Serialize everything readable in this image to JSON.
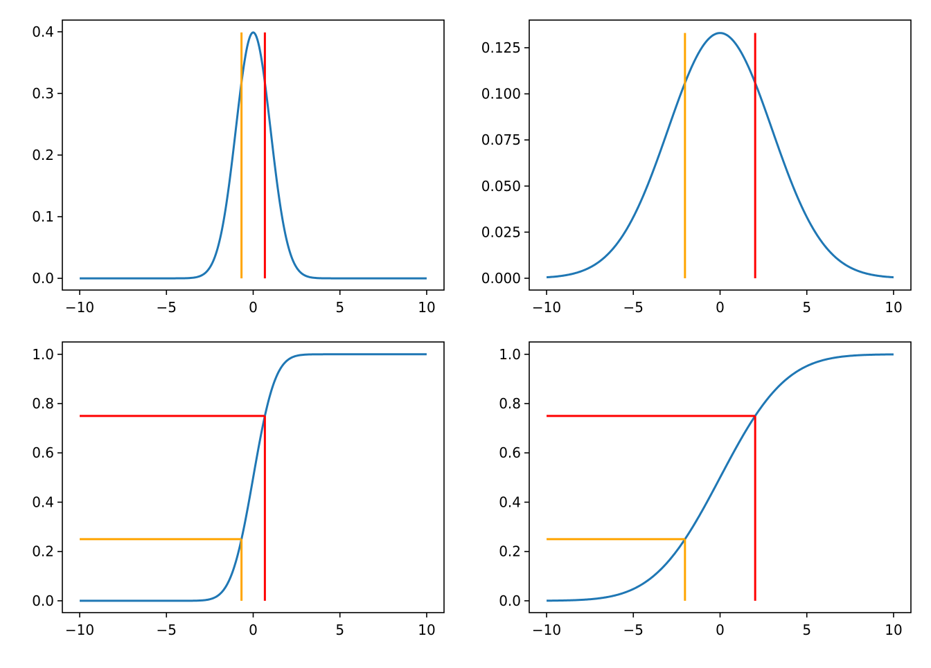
{
  "chart_data": [
    {
      "type": "line",
      "title": "",
      "kind": "pdf",
      "distribution": {
        "name": "normal",
        "mu": 0,
        "sigma": 1
      },
      "x_range": [
        -10,
        10
      ],
      "series": [
        {
          "name": "pdf",
          "color": "#1f77b4"
        }
      ],
      "quartile_lines": [
        {
          "name": "q1",
          "x": -0.674,
          "y_top": 0.3989,
          "color": "#ffa500"
        },
        {
          "name": "q3",
          "x": 0.674,
          "y_top": 0.3989,
          "color": "#ff0000"
        }
      ],
      "xlim": [
        -11,
        11
      ],
      "ylim": [
        -0.019,
        0.419
      ],
      "xticks": [
        {
          "v": -10,
          "label": "−10"
        },
        {
          "v": -5,
          "label": "−5"
        },
        {
          "v": 0,
          "label": "0"
        },
        {
          "v": 5,
          "label": "5"
        },
        {
          "v": 10,
          "label": "10"
        }
      ],
      "yticks": [
        {
          "v": 0,
          "label": "0.0"
        },
        {
          "v": 0.1,
          "label": "0.1"
        },
        {
          "v": 0.2,
          "label": "0.2"
        },
        {
          "v": 0.3,
          "label": "0.3"
        },
        {
          "v": 0.4,
          "label": "0.4"
        }
      ],
      "grid": false
    },
    {
      "type": "line",
      "title": "",
      "kind": "pdf",
      "distribution": {
        "name": "normal",
        "mu": 0,
        "sigma": 3
      },
      "x_range": [
        -10,
        10
      ],
      "series": [
        {
          "name": "pdf",
          "color": "#1f77b4"
        }
      ],
      "quartile_lines": [
        {
          "name": "q1",
          "x": -2.023,
          "y_top": 0.133,
          "color": "#ffa500"
        },
        {
          "name": "q3",
          "x": 2.023,
          "y_top": 0.133,
          "color": "#ff0000"
        }
      ],
      "xlim": [
        -11,
        11
      ],
      "ylim": [
        -0.0064,
        0.14
      ],
      "xticks": [
        {
          "v": -10,
          "label": "−10"
        },
        {
          "v": -5,
          "label": "−5"
        },
        {
          "v": 0,
          "label": "0"
        },
        {
          "v": 5,
          "label": "5"
        },
        {
          "v": 10,
          "label": "10"
        }
      ],
      "yticks": [
        {
          "v": 0,
          "label": "0.000"
        },
        {
          "v": 0.025,
          "label": "0.025"
        },
        {
          "v": 0.05,
          "label": "0.050"
        },
        {
          "v": 0.075,
          "label": "0.075"
        },
        {
          "v": 0.1,
          "label": "0.100"
        },
        {
          "v": 0.125,
          "label": "0.125"
        }
      ],
      "grid": false
    },
    {
      "type": "line",
      "title": "",
      "kind": "cdf",
      "distribution": {
        "name": "normal",
        "mu": 0,
        "sigma": 1
      },
      "x_range": [
        -10,
        10
      ],
      "series": [
        {
          "name": "cdf",
          "color": "#1f77b4"
        }
      ],
      "quartile_lines": [
        {
          "name": "q1",
          "x": -0.674,
          "y": 0.25,
          "color": "#ffa500"
        },
        {
          "name": "q3",
          "x": 0.674,
          "y": 0.75,
          "color": "#ff0000"
        }
      ],
      "xlim": [
        -11,
        11
      ],
      "ylim": [
        -0.048,
        1.05
      ],
      "xticks": [
        {
          "v": -10,
          "label": "−10"
        },
        {
          "v": -5,
          "label": "−5"
        },
        {
          "v": 0,
          "label": "0"
        },
        {
          "v": 5,
          "label": "5"
        },
        {
          "v": 10,
          "label": "10"
        }
      ],
      "yticks": [
        {
          "v": 0,
          "label": "0.0"
        },
        {
          "v": 0.2,
          "label": "0.2"
        },
        {
          "v": 0.4,
          "label": "0.4"
        },
        {
          "v": 0.6,
          "label": "0.6"
        },
        {
          "v": 0.8,
          "label": "0.8"
        },
        {
          "v": 1.0,
          "label": "1.0"
        }
      ],
      "grid": false
    },
    {
      "type": "line",
      "title": "",
      "kind": "cdf",
      "distribution": {
        "name": "normal",
        "mu": 0,
        "sigma": 3
      },
      "x_range": [
        -10,
        10
      ],
      "series": [
        {
          "name": "cdf",
          "color": "#1f77b4"
        }
      ],
      "quartile_lines": [
        {
          "name": "q1",
          "x": -2.023,
          "y": 0.25,
          "color": "#ffa500"
        },
        {
          "name": "q3",
          "x": 2.023,
          "y": 0.75,
          "color": "#ff0000"
        }
      ],
      "xlim": [
        -11,
        11
      ],
      "ylim": [
        -0.048,
        1.05
      ],
      "xticks": [
        {
          "v": -10,
          "label": "−10"
        },
        {
          "v": -5,
          "label": "−5"
        },
        {
          "v": 0,
          "label": "0"
        },
        {
          "v": 5,
          "label": "5"
        },
        {
          "v": 10,
          "label": "10"
        }
      ],
      "yticks": [
        {
          "v": 0,
          "label": "0.0"
        },
        {
          "v": 0.2,
          "label": "0.2"
        },
        {
          "v": 0.4,
          "label": "0.4"
        },
        {
          "v": 0.6,
          "label": "0.6"
        },
        {
          "v": 0.8,
          "label": "0.8"
        },
        {
          "v": 1.0,
          "label": "1.0"
        }
      ],
      "grid": false
    }
  ]
}
